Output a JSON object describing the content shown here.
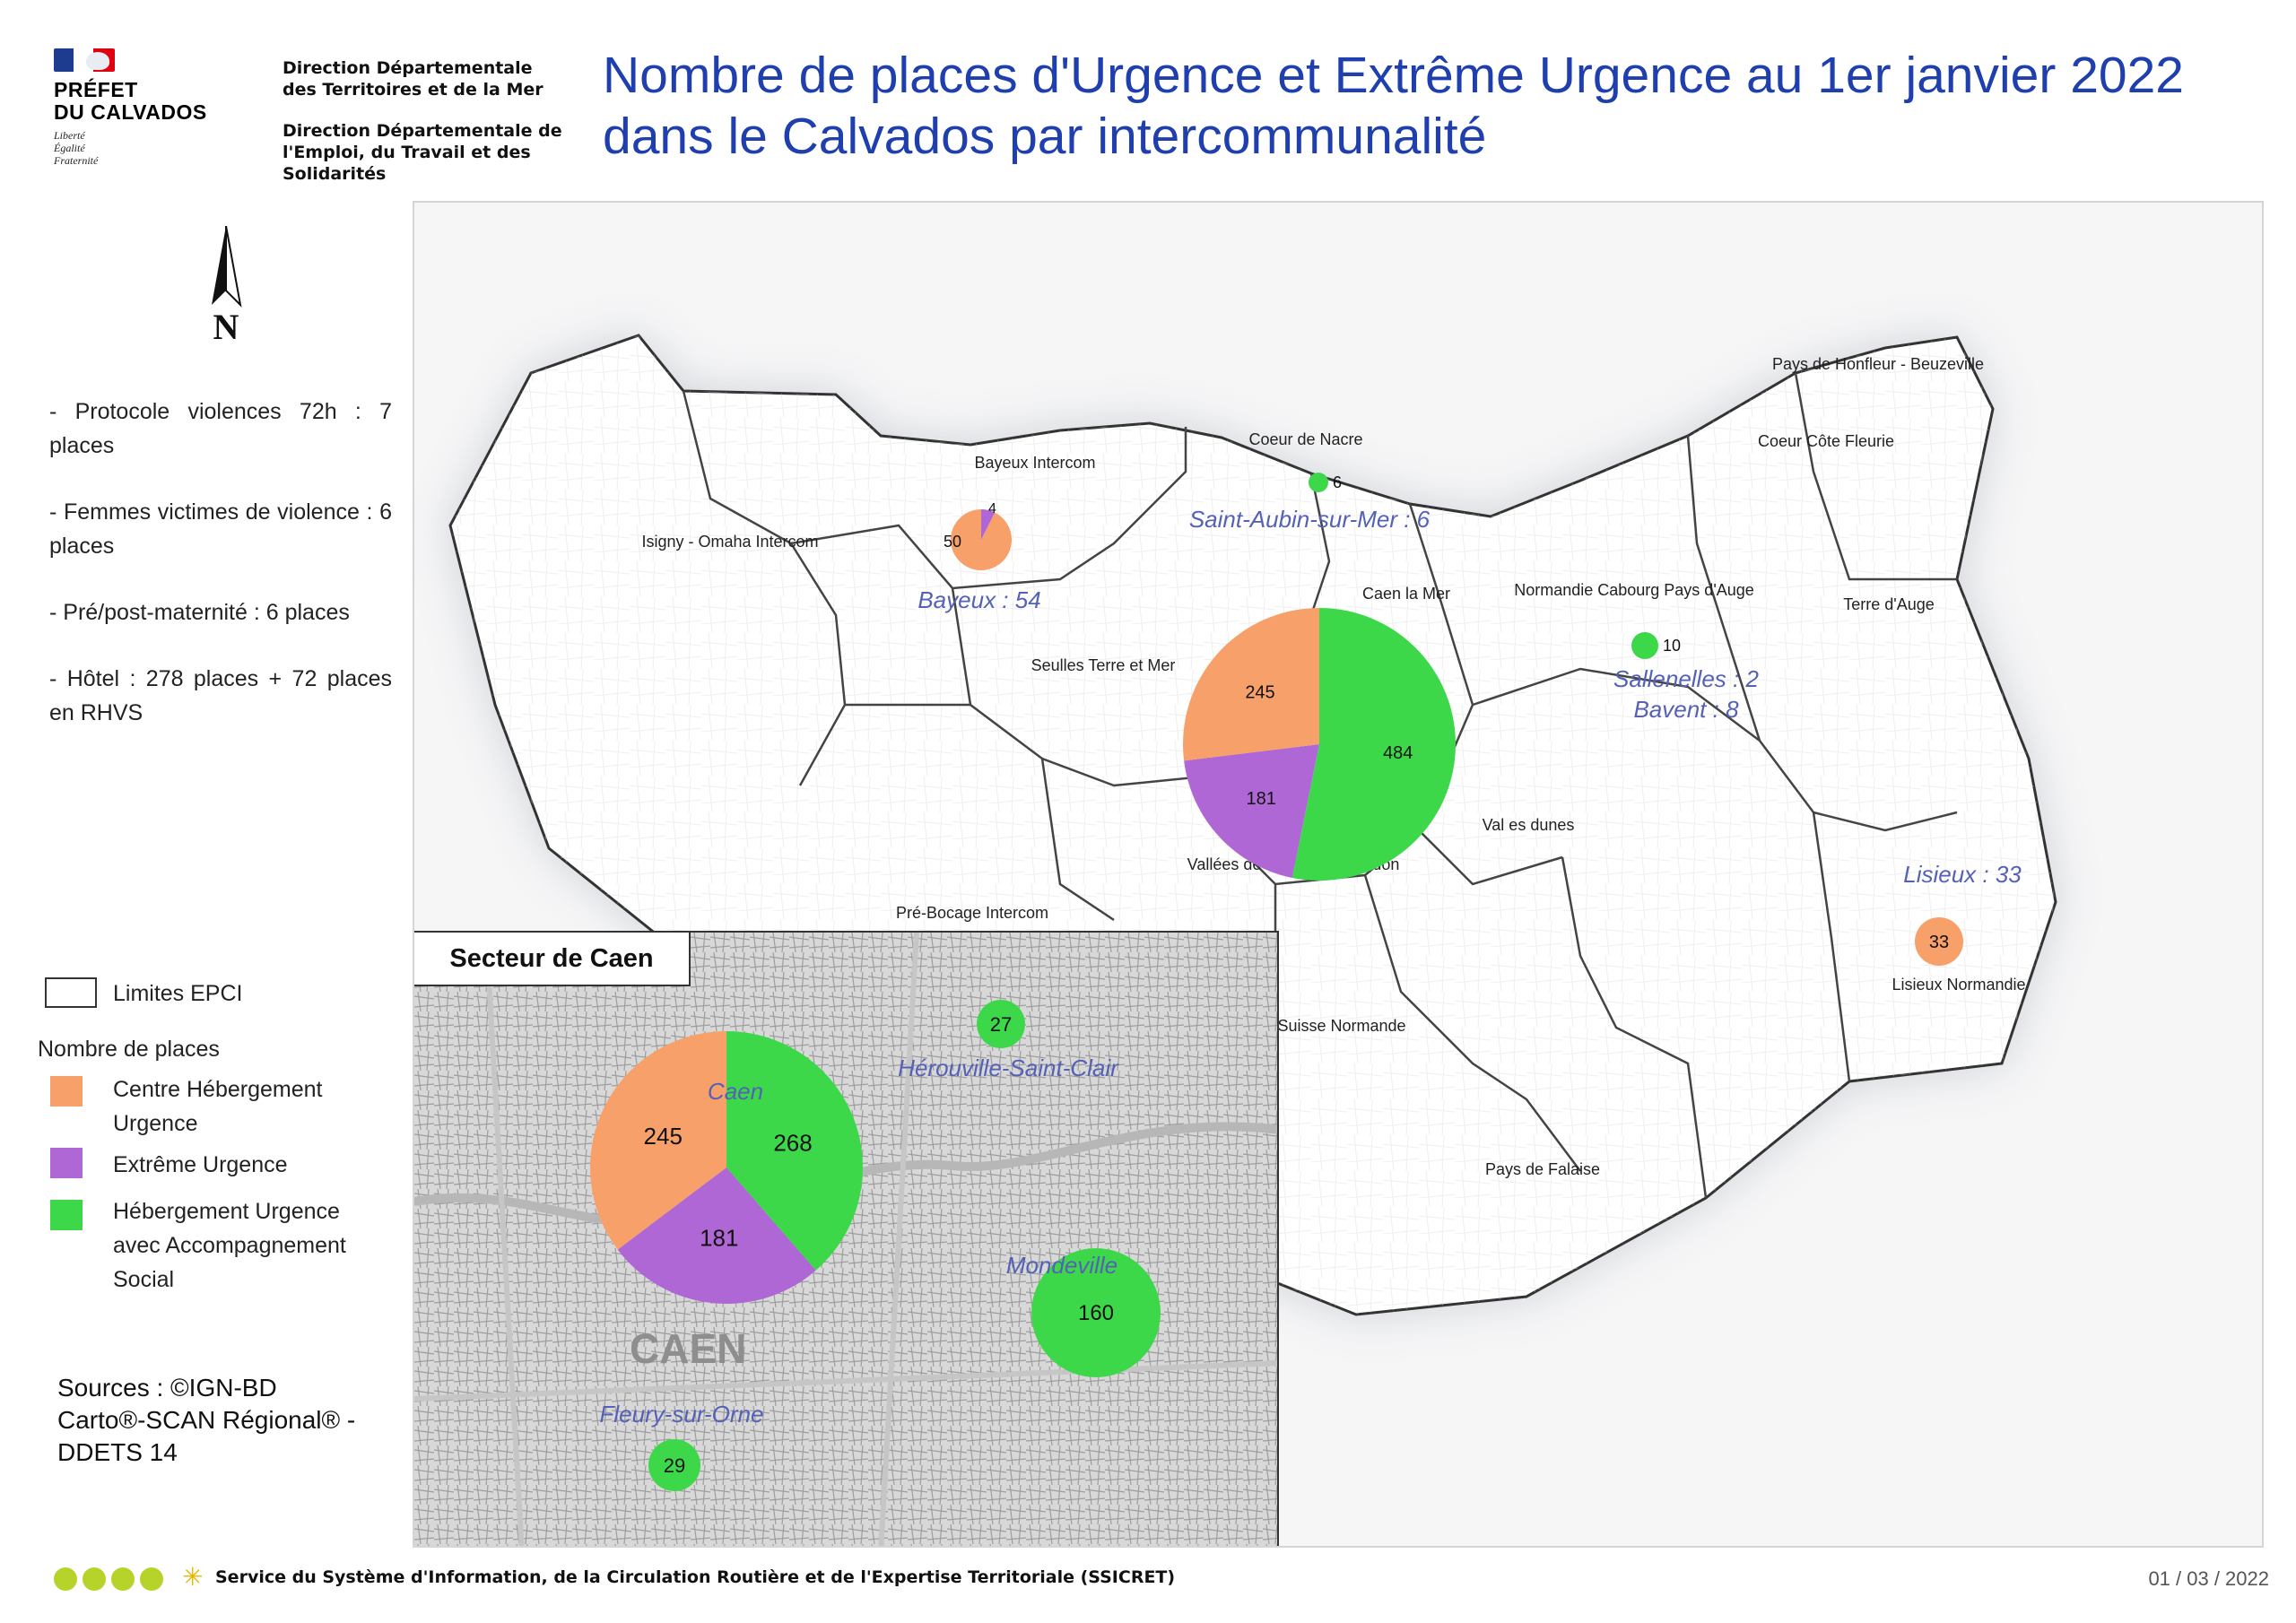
{
  "header": {
    "logo": {
      "line1": "PRÉFET",
      "line2": "DU CALVADOS",
      "devise": [
        "Liberté",
        "Égalité",
        "Fraternité"
      ]
    },
    "direction1": "Direction Départementale des Territoires et de la Mer",
    "direction2": "Direction Départementale de l'Emploi, du Travail et des Solidarités",
    "title": "Nombre de places d'Urgence et Extrême Urgence au 1er janvier 2022 dans le Calvados par intercommunalité"
  },
  "north_label": "N",
  "notes": [
    "- Protocole violences 72h : 7 places",
    "- Femmes victimes de violence : 6 places",
    "- Pré/post-maternité : 6 places",
    "- Hôtel : 278 places + 72 places en RHVS"
  ],
  "legend": {
    "epci": "Limites EPCI",
    "heading": "Nombre de places",
    "items": [
      {
        "label_lines": [
          "Centre Hébergement",
          "Urgence"
        ],
        "color": "#f7a06a"
      },
      {
        "label_lines": [
          "Extrême Urgence"
        ],
        "color": "#b067d6"
      },
      {
        "label_lines": [
          "Hébergement Urgence",
          "avec Accompagnement",
          "Social"
        ],
        "color": "#3dd84a"
      }
    ]
  },
  "sources": [
    "Sources : ©IGN-BD",
    "Carto®-SCAN Régional®  -",
    "DDETS 14"
  ],
  "epci_labels": [
    "Pays de Honfleur - Beuzeville",
    "Coeur Côte Fleurie",
    "Coeur de Nacre",
    "Bayeux Intercom",
    "Isigny - Omaha Intercom",
    "Caen la Mer",
    "Normandie Cabourg Pays d'Auge",
    "Terre d'Auge",
    "Seulles Terre et Mer",
    "Val es dunes",
    "Vallées de l'Orne et de l'Odon",
    "Pré-Bocage Intercom",
    "Lisieux Normandie",
    "Suisse Normande",
    "Pays de Falaise"
  ],
  "city_labels": {
    "saint_aubin": "Saint-Aubin-sur-Mer : 6",
    "bayeux": "Bayeux : 54",
    "sallenelles": "Sallenelles : 2",
    "bavent": "Bavent : 8",
    "lisieux": "Lisieux : 33"
  },
  "symbols": {
    "saint_aubin_value": "6",
    "bavent_value": "10",
    "lisieux_value": "33",
    "bayeux": {
      "chu": 50,
      "eu": 4
    },
    "caen_la_mer": {
      "chu": 245,
      "eu": 181,
      "hua": 484
    }
  },
  "inset": {
    "title": "Secteur de Caen",
    "caen_label": "Caen",
    "caen": {
      "chu": 245,
      "eu": 181,
      "hua": 268
    },
    "herouville_label": "Hérouville-Saint-Clair",
    "herouville_value": "27",
    "mondeville_label": "Mondeville",
    "mondeville_value": "160",
    "fleury_label": "Fleury-sur-Orne",
    "fleury_value": "29"
  },
  "colors": {
    "chu": "#f7a06a",
    "eu": "#b067d6",
    "hua": "#3dd84a",
    "title": "#1f3fae",
    "city_label": "#5561b5"
  },
  "footer": {
    "text": "Service du Système d'Information, de la Circulation Routière et de l'Expertise Territoriale (SSICRET)",
    "date": "01 / 03 / 2022"
  }
}
